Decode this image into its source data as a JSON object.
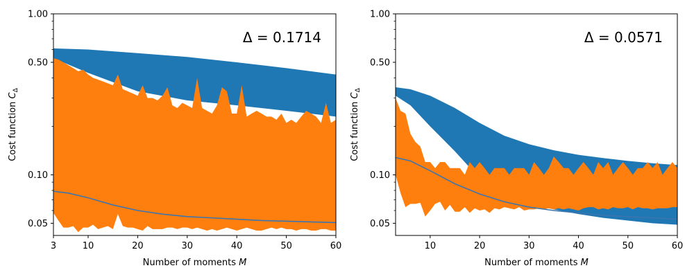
{
  "colors": {
    "upper_band": "#1f77b4",
    "lower_band": "#ff7f0e",
    "line": "#3b75af"
  },
  "chart_data": [
    {
      "type": "area",
      "id": "left",
      "annotation": "Δ = 0.1714",
      "xlabel": "Number of moments",
      "xlabel_symbol": "M",
      "ylabel": "Cost function",
      "ylabel_symbol": "C",
      "ylabel_subscript": "Δ",
      "xlim": [
        3,
        60
      ],
      "ylim": [
        0.042,
        1.0
      ],
      "yscale": "log",
      "xticks": [
        3,
        10,
        20,
        30,
        40,
        50,
        60
      ],
      "yticks": [
        0.05,
        0.1,
        0.5,
        1.0
      ],
      "ytick_labels": [
        "0.05",
        "0.10",
        "0.50",
        "1.00"
      ],
      "series": [
        {
          "name": "blue band",
          "x": [
            3,
            10,
            20,
            30,
            40,
            50,
            60
          ],
          "upper": [
            0.61,
            0.6,
            0.57,
            0.54,
            0.5,
            0.46,
            0.42
          ],
          "lower": [
            0.53,
            0.43,
            0.33,
            0.29,
            0.27,
            0.25,
            0.23
          ]
        },
        {
          "name": "orange band",
          "x": [
            3,
            4,
            5,
            6,
            7,
            8,
            9,
            10,
            11,
            12,
            13,
            14,
            15,
            16,
            17,
            18,
            19,
            20,
            21,
            22,
            23,
            24,
            25,
            26,
            27,
            28,
            29,
            30,
            31,
            32,
            33,
            34,
            35,
            36,
            37,
            38,
            39,
            40,
            41,
            42,
            43,
            44,
            45,
            46,
            47,
            48,
            49,
            50,
            51,
            52,
            53,
            54,
            55,
            56,
            57,
            58,
            59,
            60
          ],
          "upper": [
            0.53,
            0.52,
            0.5,
            0.48,
            0.46,
            0.44,
            0.45,
            0.42,
            0.4,
            0.39,
            0.38,
            0.37,
            0.36,
            0.42,
            0.34,
            0.33,
            0.32,
            0.31,
            0.36,
            0.3,
            0.3,
            0.29,
            0.31,
            0.35,
            0.27,
            0.26,
            0.28,
            0.27,
            0.26,
            0.4,
            0.26,
            0.25,
            0.24,
            0.27,
            0.35,
            0.33,
            0.24,
            0.24,
            0.36,
            0.23,
            0.24,
            0.25,
            0.24,
            0.23,
            0.23,
            0.22,
            0.24,
            0.21,
            0.22,
            0.21,
            0.23,
            0.25,
            0.24,
            0.23,
            0.21,
            0.28,
            0.21,
            0.22
          ],
          "lower": [
            0.058,
            0.052,
            0.047,
            0.047,
            0.048,
            0.044,
            0.047,
            0.047,
            0.049,
            0.046,
            0.047,
            0.048,
            0.046,
            0.057,
            0.048,
            0.047,
            0.047,
            0.046,
            0.045,
            0.048,
            0.046,
            0.046,
            0.046,
            0.047,
            0.047,
            0.046,
            0.047,
            0.047,
            0.046,
            0.047,
            0.046,
            0.045,
            0.046,
            0.045,
            0.046,
            0.047,
            0.046,
            0.045,
            0.046,
            0.047,
            0.046,
            0.045,
            0.045,
            0.046,
            0.047,
            0.046,
            0.047,
            0.046,
            0.046,
            0.045,
            0.046,
            0.046,
            0.045,
            0.045,
            0.046,
            0.046,
            0.045,
            0.045
          ]
        },
        {
          "name": "mean line",
          "x": [
            3,
            6,
            10,
            15,
            20,
            25,
            30,
            35,
            40,
            45,
            50,
            55,
            60
          ],
          "values": [
            0.079,
            0.077,
            0.072,
            0.065,
            0.06,
            0.057,
            0.055,
            0.054,
            0.053,
            0.052,
            0.0515,
            0.051,
            0.0505
          ]
        }
      ]
    },
    {
      "type": "area",
      "id": "right",
      "annotation": "Δ = 0.0571",
      "xlabel": "Number of moments",
      "xlabel_symbol": "M",
      "ylabel": "Cost function",
      "ylabel_symbol": "C",
      "ylabel_subscript": "Δ",
      "xlim": [
        3,
        60
      ],
      "ylim": [
        0.042,
        1.0
      ],
      "yscale": "log",
      "xticks": [
        10,
        20,
        30,
        40,
        50,
        60
      ],
      "yticks": [
        0.05,
        0.1,
        0.5,
        1.0
      ],
      "ytick_labels": [
        "0.05",
        "0.10",
        "0.50",
        "1.00"
      ],
      "series": [
        {
          "name": "blue band",
          "x": [
            3,
            6,
            10,
            15,
            20,
            25,
            30,
            35,
            40,
            45,
            50,
            55,
            60
          ],
          "upper": [
            0.35,
            0.34,
            0.31,
            0.26,
            0.21,
            0.175,
            0.155,
            0.142,
            0.133,
            0.127,
            0.122,
            0.118,
            0.115
          ],
          "lower": [
            0.31,
            0.27,
            0.2,
            0.14,
            0.095,
            0.075,
            0.066,
            0.061,
            0.057,
            0.054,
            0.052,
            0.05,
            0.049
          ]
        },
        {
          "name": "orange band",
          "x": [
            3,
            4,
            5,
            6,
            7,
            8,
            9,
            10,
            11,
            12,
            13,
            14,
            15,
            16,
            17,
            18,
            19,
            20,
            21,
            22,
            23,
            24,
            25,
            26,
            27,
            28,
            29,
            30,
            31,
            32,
            33,
            34,
            35,
            36,
            37,
            38,
            39,
            40,
            41,
            42,
            43,
            44,
            45,
            46,
            47,
            48,
            49,
            50,
            51,
            52,
            53,
            54,
            55,
            56,
            57,
            58,
            59,
            60
          ],
          "upper": [
            0.3,
            0.25,
            0.24,
            0.18,
            0.16,
            0.15,
            0.12,
            0.12,
            0.11,
            0.12,
            0.12,
            0.11,
            0.11,
            0.11,
            0.1,
            0.12,
            0.11,
            0.12,
            0.11,
            0.1,
            0.11,
            0.11,
            0.11,
            0.1,
            0.11,
            0.11,
            0.11,
            0.1,
            0.12,
            0.11,
            0.1,
            0.11,
            0.13,
            0.12,
            0.11,
            0.11,
            0.1,
            0.11,
            0.12,
            0.11,
            0.1,
            0.12,
            0.11,
            0.12,
            0.1,
            0.11,
            0.12,
            0.11,
            0.1,
            0.11,
            0.11,
            0.12,
            0.11,
            0.12,
            0.1,
            0.11,
            0.12,
            0.11
          ],
          "lower": [
            0.1,
            0.077,
            0.063,
            0.066,
            0.066,
            0.067,
            0.055,
            0.06,
            0.066,
            0.068,
            0.06,
            0.065,
            0.059,
            0.059,
            0.063,
            0.058,
            0.062,
            0.06,
            0.061,
            0.058,
            0.062,
            0.061,
            0.063,
            0.062,
            0.061,
            0.063,
            0.06,
            0.061,
            0.061,
            0.062,
            0.061,
            0.062,
            0.061,
            0.062,
            0.061,
            0.062,
            0.061,
            0.06,
            0.062,
            0.063,
            0.063,
            0.061,
            0.062,
            0.061,
            0.063,
            0.062,
            0.062,
            0.063,
            0.061,
            0.063,
            0.062,
            0.062,
            0.061,
            0.062,
            0.062,
            0.062,
            0.063,
            0.063
          ]
        },
        {
          "name": "mean line",
          "x": [
            3,
            6,
            10,
            15,
            20,
            25,
            30,
            35,
            40,
            45,
            50,
            55,
            60
          ],
          "values": [
            0.128,
            0.122,
            0.106,
            0.088,
            0.076,
            0.068,
            0.063,
            0.06,
            0.058,
            0.056,
            0.055,
            0.054,
            0.053
          ]
        }
      ]
    }
  ]
}
